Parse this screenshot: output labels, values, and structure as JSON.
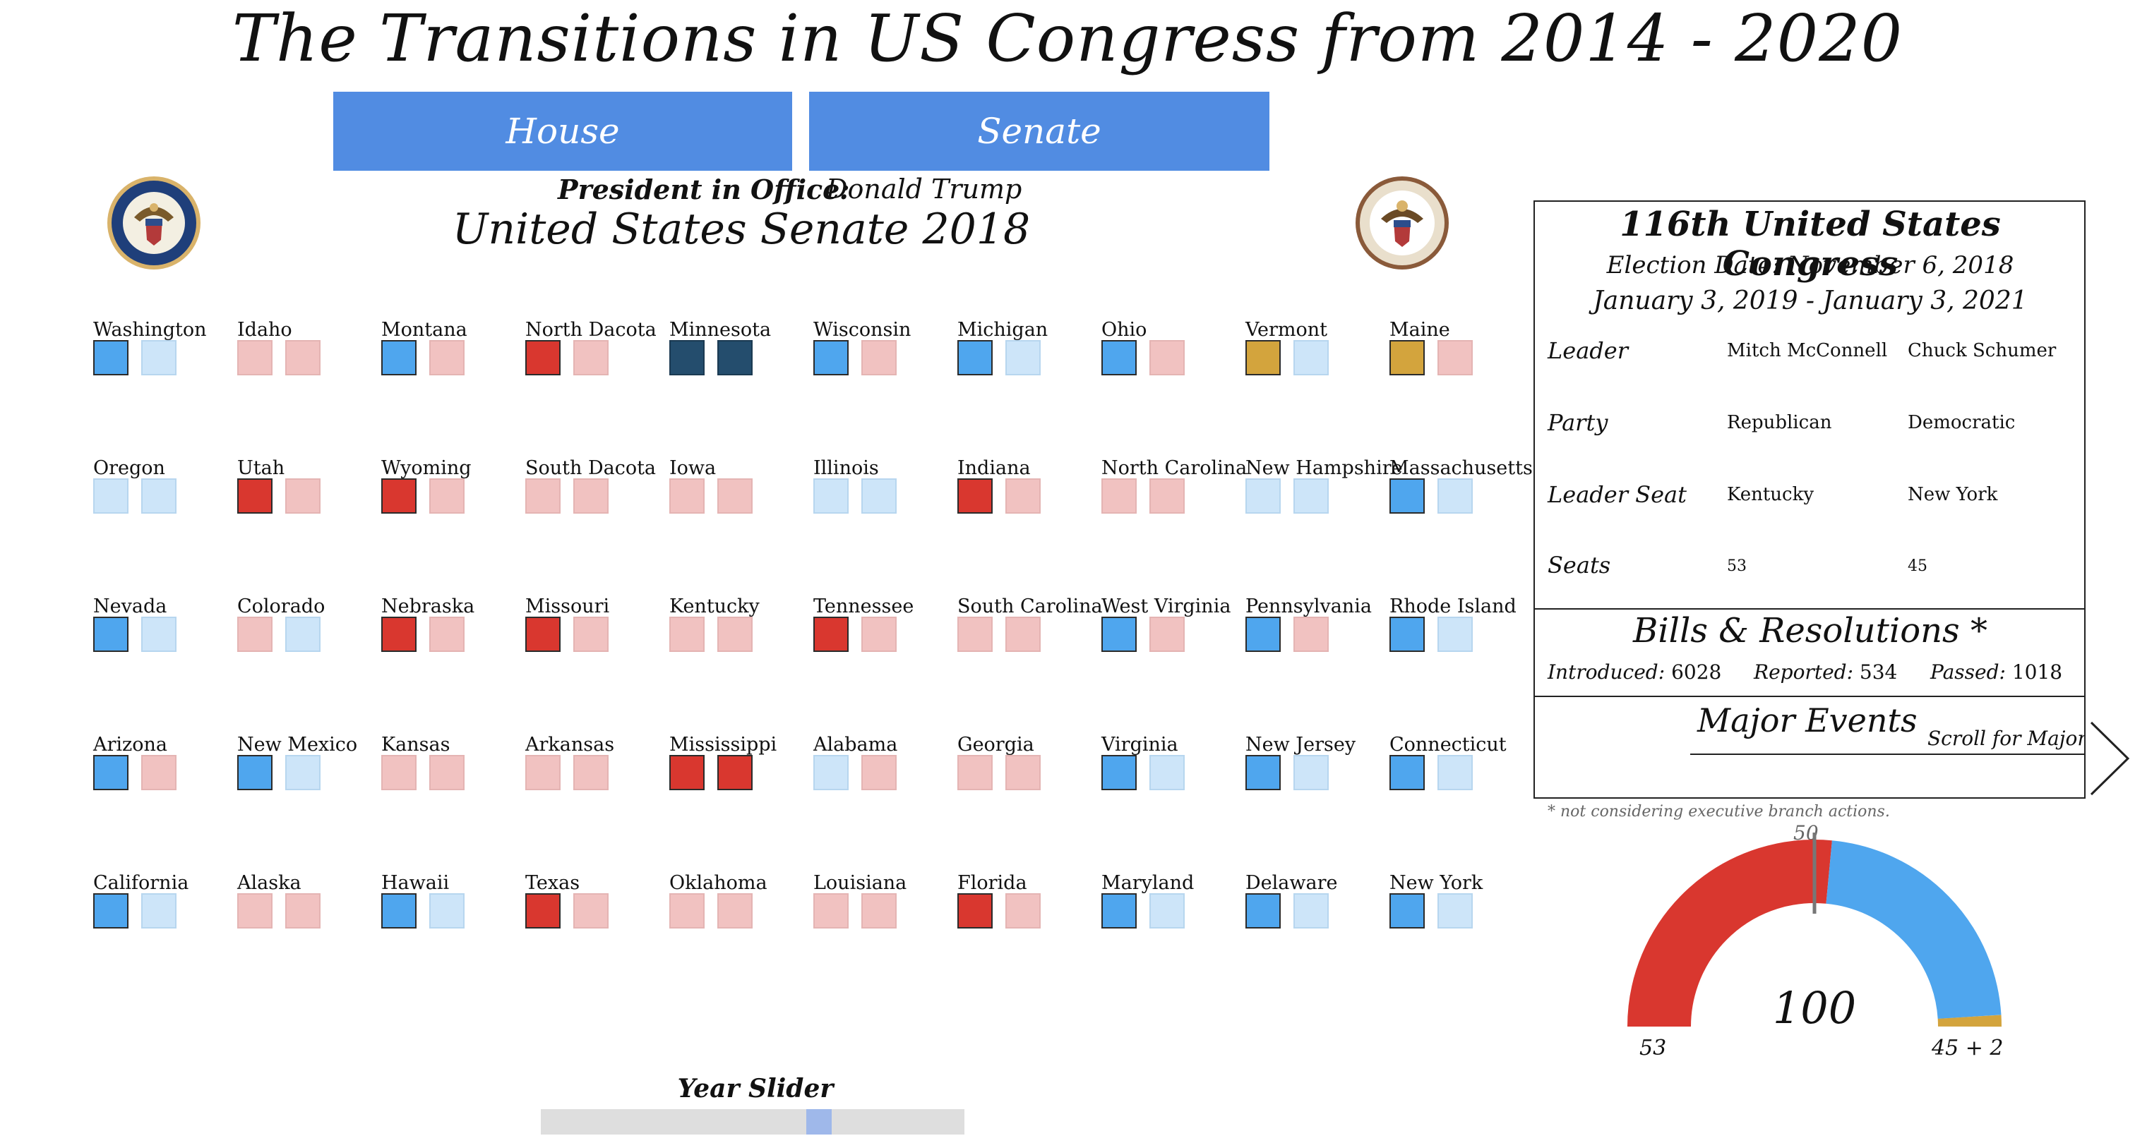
{
  "title": "The Transitions in US Congress from 2014 - 2020",
  "nav": {
    "house": "House",
    "senate": "Senate"
  },
  "president": {
    "label": "President in Office:",
    "name": "Donald Trump"
  },
  "senate_title": "United States Senate 2018",
  "colors": {
    "republican": "#d9372f",
    "republican_light": "#f1c2c1",
    "democrat": "#4fa6ee",
    "democrat_light": "#cde5f9",
    "democrat_dark": "#244d6d",
    "independent": "#d3a43d",
    "button": "#518ce2"
  },
  "states": [
    {
      "name": "Washington",
      "seats": [
        "dem",
        "dem-light"
      ]
    },
    {
      "name": "Idaho",
      "seats": [
        "rep-light",
        "rep-light"
      ]
    },
    {
      "name": "Montana",
      "seats": [
        "dem",
        "rep-light"
      ]
    },
    {
      "name": "North Dacota",
      "seats": [
        "rep",
        "rep-light"
      ]
    },
    {
      "name": "Minnesota",
      "seats": [
        "dem-dark",
        "dem-dark"
      ]
    },
    {
      "name": "Wisconsin",
      "seats": [
        "dem",
        "rep-light"
      ]
    },
    {
      "name": "Michigan",
      "seats": [
        "dem",
        "dem-light"
      ]
    },
    {
      "name": "Ohio",
      "seats": [
        "dem",
        "rep-light"
      ]
    },
    {
      "name": "Vermont",
      "seats": [
        "ind",
        "dem-light"
      ]
    },
    {
      "name": "Maine",
      "seats": [
        "ind",
        "rep-light"
      ]
    },
    {
      "name": "Oregon",
      "seats": [
        "dem-light",
        "dem-light"
      ]
    },
    {
      "name": "Utah",
      "seats": [
        "rep",
        "rep-light"
      ]
    },
    {
      "name": "Wyoming",
      "seats": [
        "rep",
        "rep-light"
      ]
    },
    {
      "name": "South Dacota",
      "seats": [
        "rep-light",
        "rep-light"
      ]
    },
    {
      "name": "Iowa",
      "seats": [
        "rep-light",
        "rep-light"
      ]
    },
    {
      "name": "Illinois",
      "seats": [
        "dem-light",
        "dem-light"
      ]
    },
    {
      "name": "Indiana",
      "seats": [
        "rep",
        "rep-light"
      ]
    },
    {
      "name": "North Carolina",
      "seats": [
        "rep-light",
        "rep-light"
      ]
    },
    {
      "name": "New Hampshire",
      "seats": [
        "dem-light",
        "dem-light"
      ]
    },
    {
      "name": "Massachusetts",
      "seats": [
        "dem",
        "dem-light"
      ]
    },
    {
      "name": "Nevada",
      "seats": [
        "dem",
        "dem-light"
      ]
    },
    {
      "name": "Colorado",
      "seats": [
        "rep-light",
        "dem-light"
      ]
    },
    {
      "name": "Nebraska",
      "seats": [
        "rep",
        "rep-light"
      ]
    },
    {
      "name": "Missouri",
      "seats": [
        "rep",
        "rep-light"
      ]
    },
    {
      "name": "Kentucky",
      "seats": [
        "rep-light",
        "rep-light"
      ]
    },
    {
      "name": "Tennessee",
      "seats": [
        "rep",
        "rep-light"
      ]
    },
    {
      "name": "South Carolina",
      "seats": [
        "rep-light",
        "rep-light"
      ]
    },
    {
      "name": "West Virginia",
      "seats": [
        "dem",
        "rep-light"
      ]
    },
    {
      "name": "Pennsylvania",
      "seats": [
        "dem",
        "rep-light"
      ]
    },
    {
      "name": "Rhode Island",
      "seats": [
        "dem",
        "dem-light"
      ]
    },
    {
      "name": "Arizona",
      "seats": [
        "dem",
        "rep-light"
      ]
    },
    {
      "name": "New Mexico",
      "seats": [
        "dem",
        "dem-light"
      ]
    },
    {
      "name": "Kansas",
      "seats": [
        "rep-light",
        "rep-light"
      ]
    },
    {
      "name": "Arkansas",
      "seats": [
        "rep-light",
        "rep-light"
      ]
    },
    {
      "name": "Mississippi",
      "seats": [
        "rep",
        "rep"
      ]
    },
    {
      "name": "Alabama",
      "seats": [
        "dem-light",
        "rep-light"
      ]
    },
    {
      "name": "Georgia",
      "seats": [
        "rep-light",
        "rep-light"
      ]
    },
    {
      "name": "Virginia",
      "seats": [
        "dem",
        "dem-light"
      ]
    },
    {
      "name": "New Jersey",
      "seats": [
        "dem",
        "dem-light"
      ]
    },
    {
      "name": "Connecticut",
      "seats": [
        "dem",
        "dem-light"
      ]
    },
    {
      "name": "California",
      "seats": [
        "dem",
        "dem-light"
      ]
    },
    {
      "name": "Alaska",
      "seats": [
        "rep-light",
        "rep-light"
      ]
    },
    {
      "name": "Hawaii",
      "seats": [
        "dem",
        "dem-light"
      ]
    },
    {
      "name": "Texas",
      "seats": [
        "rep",
        "rep-light"
      ]
    },
    {
      "name": "Oklahoma",
      "seats": [
        "rep-light",
        "rep-light"
      ]
    },
    {
      "name": "Louisiana",
      "seats": [
        "rep-light",
        "rep-light"
      ]
    },
    {
      "name": "Florida",
      "seats": [
        "rep",
        "rep-light"
      ]
    },
    {
      "name": "Maryland",
      "seats": [
        "dem",
        "dem-light"
      ]
    },
    {
      "name": "Delaware",
      "seats": [
        "dem",
        "dem-light"
      ]
    },
    {
      "name": "New York",
      "seats": [
        "dem",
        "dem-light"
      ]
    }
  ],
  "congress": {
    "name": "116th United States Congress",
    "election": "Election Date: November 6, 2018",
    "term": "January 3, 2019 - January 3, 2021",
    "rows": [
      {
        "label": "Leader",
        "rep": "Mitch McConnell",
        "dem": "Chuck Schumer"
      },
      {
        "label": "Party",
        "rep": "Republican",
        "dem": "Democratic"
      },
      {
        "label": "Leader Seat",
        "rep": "Kentucky",
        "dem": "New York"
      },
      {
        "label": "Seats",
        "rep": "53",
        "dem": "45"
      }
    ],
    "bills_heading": "Bills & Resolutions *",
    "introduced_label": "Introduced:",
    "introduced": "6028",
    "reported_label": "Reported:",
    "reported": "534",
    "passed_label": "Passed:",
    "passed": "1018",
    "events_heading": "Major Events",
    "events_scroll": "Scroll for Major Events"
  },
  "footnote": "* not considering executive branch actions.",
  "gauge": {
    "total": "100",
    "midpoint": "50",
    "rep_label": "53",
    "other_label": "45 + 2",
    "rep": 53,
    "dem": 45,
    "ind": 2
  },
  "slider": {
    "label": "Year Slider"
  }
}
